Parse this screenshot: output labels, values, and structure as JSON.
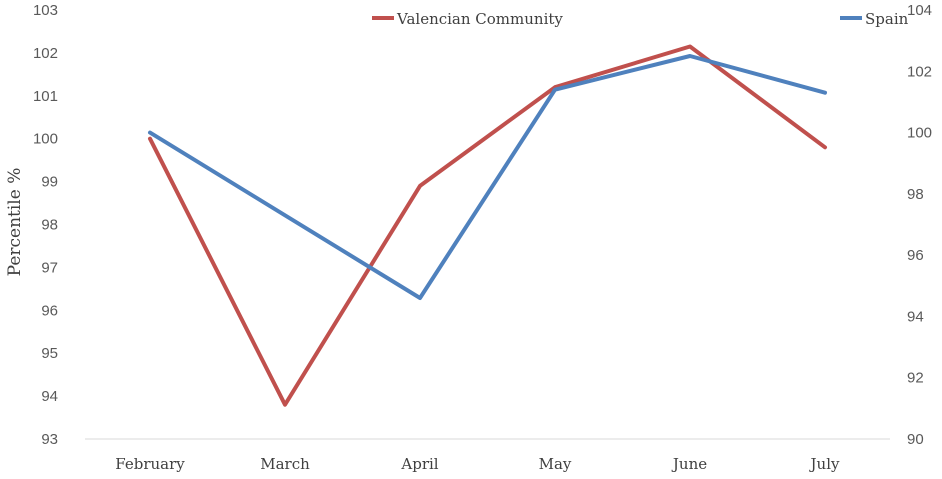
{
  "chart_data": {
    "type": "line",
    "categories": [
      "February",
      "March",
      "April",
      "May",
      "June",
      "July"
    ],
    "ylabel": "Percentile %",
    "y_left": {
      "ticks": [
        93,
        94,
        95,
        96,
        97,
        98,
        99,
        100,
        101,
        102,
        103
      ],
      "range": [
        93,
        103
      ]
    },
    "y_right": {
      "ticks": [
        90,
        92,
        94,
        96,
        98,
        100,
        102,
        104
      ],
      "range": [
        90,
        104
      ]
    },
    "legend_position": "top",
    "grid": false,
    "series": [
      {
        "name": "Valencian Community",
        "axis": "left",
        "color": "#c0504d",
        "values": [
          100.0,
          93.8,
          98.9,
          101.2,
          102.15,
          99.8
        ]
      },
      {
        "name": "Spain",
        "axis": "right",
        "color": "#4f81bd",
        "values": [
          100.0,
          97.3,
          94.6,
          101.4,
          102.5,
          101.3
        ]
      }
    ]
  }
}
